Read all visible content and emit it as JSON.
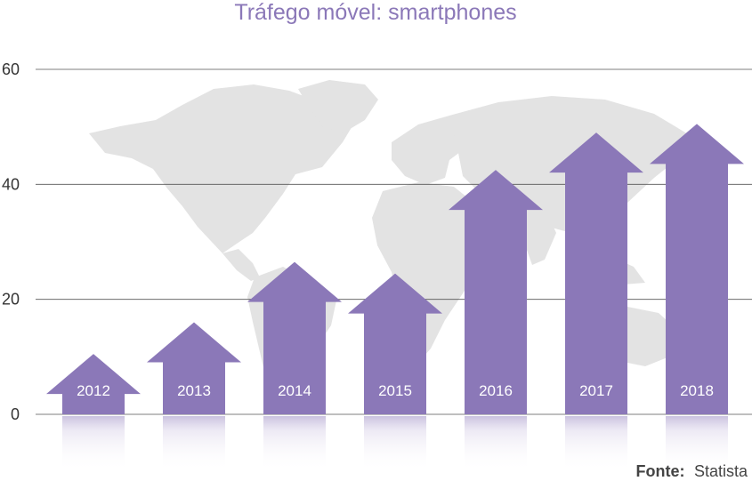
{
  "chart_data": {
    "type": "bar",
    "title": "Tráfego móvel: smartphones",
    "categories": [
      "2012",
      "2013",
      "2014",
      "2015",
      "2016",
      "2017",
      "2018"
    ],
    "values": [
      10.5,
      16,
      26.5,
      24.5,
      42.5,
      49,
      50.5
    ],
    "yticks": [
      "0",
      "20",
      "40",
      "60"
    ],
    "ylim": [
      0,
      60
    ],
    "grid": true,
    "bar_style": "arrow",
    "background": "world-map",
    "colors": {
      "bar": "#8b78b8",
      "title": "#8b78b8",
      "map": "#e3e3e3"
    }
  },
  "source": {
    "prefix": "Fonte:",
    "name": "Statista"
  }
}
